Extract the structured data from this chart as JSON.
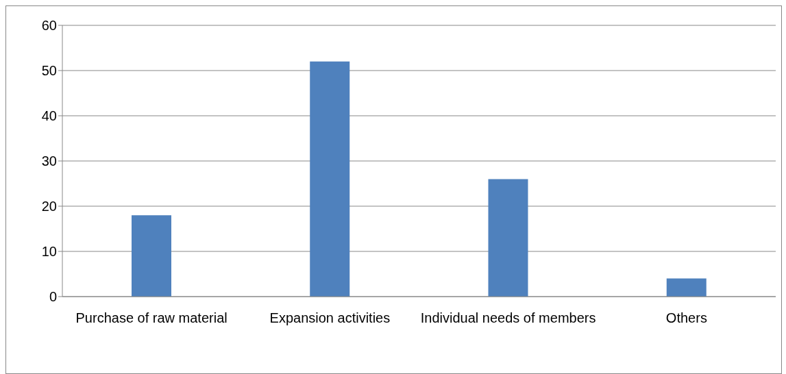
{
  "chart_data": {
    "type": "bar",
    "categories": [
      "Purchase of raw material",
      "Expansion activities",
      "Individual needs of members",
      "Others"
    ],
    "values": [
      18,
      52,
      26,
      4
    ],
    "color": "#4f81bd",
    "ylim": [
      0,
      60
    ],
    "yticks": [
      0,
      10,
      20,
      30,
      40,
      50,
      60
    ],
    "grid": "y"
  }
}
